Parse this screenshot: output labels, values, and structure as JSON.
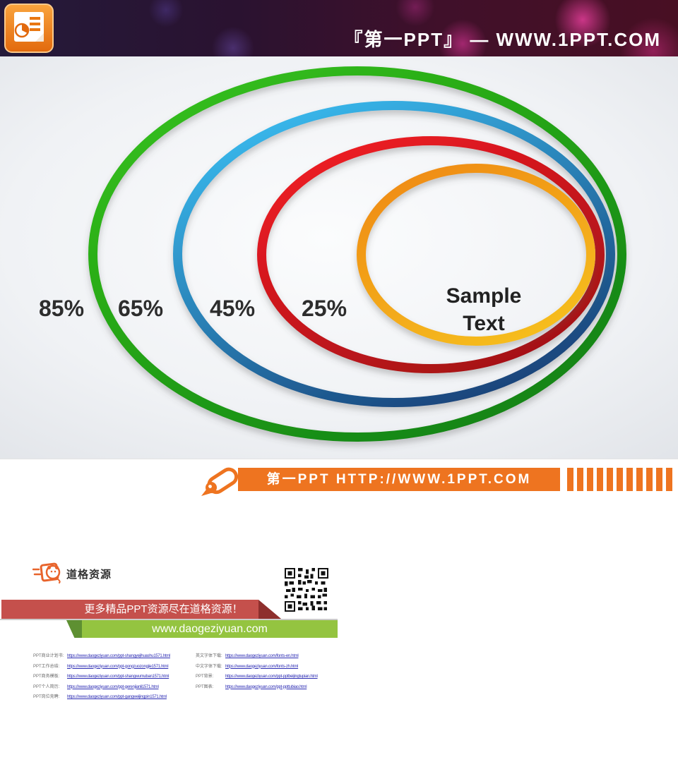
{
  "header": {
    "brand": "『第一PPT』 —  WWW.1PPT.COM",
    "logo_icon": "powerpoint-icon"
  },
  "slide": {
    "center_line1": "Sample",
    "center_line2": "Text",
    "rings": [
      {
        "name": "green",
        "label": "85%",
        "value": 85,
        "color_top": "#35c01b",
        "color_bottom": "#0f7d13"
      },
      {
        "name": "blue",
        "label": "65%",
        "value": 65,
        "color_top": "#38b6ea",
        "color_bottom": "#16386f"
      },
      {
        "name": "red",
        "label": "45%",
        "value": 45,
        "color_top": "#ee1c23",
        "color_bottom": "#9e1016"
      },
      {
        "name": "orange",
        "label": "25%",
        "value": 25,
        "color_top": "#ef8c15",
        "color_bottom": "#f6bf1e"
      }
    ]
  },
  "chart_data": {
    "type": "diagram",
    "subtype": "nested_ellipses",
    "items": [
      {
        "label": "85%",
        "value": 85,
        "color": "#1e9e14"
      },
      {
        "label": "65%",
        "value": 65,
        "color": "#2e86c9"
      },
      {
        "label": "45%",
        "value": 45,
        "color": "#d6181f"
      },
      {
        "label": "25%",
        "value": 25,
        "color": "#f0991c"
      }
    ],
    "center_text": "Sample Text"
  },
  "ribbon": {
    "icon": "pen-icon",
    "text": "第一PPT HTTP://WWW.1PPT.COM",
    "color": "#ee7420",
    "bar_count": 11
  },
  "footer": {
    "brand_name": "道格资源",
    "red_banner": "更多精品PPT资源尽在道格资源！",
    "green_banner": "www.daogeziyuan.com",
    "links_left": [
      {
        "label": "PPT商业计划书:",
        "url": "https://www.daogeziyuan.com/ppt-shangyejihuashu1571.html"
      },
      {
        "label": "PPT工作总结:",
        "url": "https://www.daogeziyuan.com/ppt-gongzuozongjie1571.html"
      },
      {
        "label": "PPT商务模板:",
        "url": "https://www.daogeziyuan.com/ppt-shangwumuban1571.html"
      },
      {
        "label": "PPT个人简历:",
        "url": "https://www.daogeziyuan.com/ppt-gerenjianli1571.html"
      },
      {
        "label": "PPT岗位竞聘:",
        "url": "https://www.daogeziyuan.com/ppt-gangweijingpin1571.html"
      }
    ],
    "links_right": [
      {
        "label": "英文字体下载:",
        "url": "https://www.daogeziyuan.com/fonts-en.html"
      },
      {
        "label": "中文字体下载:",
        "url": "https://www.daogeziyuan.com/fonts-zh.html"
      },
      {
        "label": "PPT背景:",
        "url": "https://www.daogeziyuan.com/ppt-pptbeijingtupian.html"
      },
      {
        "label": "PPT图表:",
        "url": "https://www.daogeziyuan.com/ppt-ppttubiao.html"
      }
    ]
  }
}
